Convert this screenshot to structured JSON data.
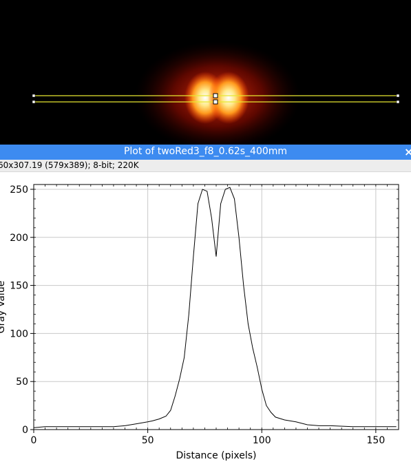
{
  "window": {
    "plot_title": "Plot of twoRed3_f8_0.62s_400mm",
    "close_glyph": "×",
    "info_text": "60x307.19   (579x389); 8-bit; 220K"
  },
  "colors": {
    "titlebar": "#3d8bf0",
    "line_selection": "#e8e830",
    "profile_line": "#000000",
    "grid": "#c8c8c8"
  },
  "chart_data": {
    "type": "line",
    "title": "",
    "xlabel": "Distance (pixels)",
    "ylabel": "Gray Value",
    "xlim": [
      0,
      160
    ],
    "ylim": [
      0,
      255
    ],
    "x_ticks": [
      0,
      50,
      100,
      150
    ],
    "y_ticks": [
      0,
      50,
      100,
      150,
      200,
      250
    ],
    "grid": true,
    "series": [
      {
        "name": "",
        "x": [
          0,
          5,
          10,
          15,
          20,
          25,
          30,
          35,
          40,
          45,
          50,
          52,
          55,
          58,
          60,
          62,
          64,
          66,
          68,
          70,
          72,
          74,
          76,
          78,
          80,
          82,
          84,
          86,
          88,
          90,
          92,
          94,
          96,
          98,
          100,
          102,
          104,
          106,
          110,
          115,
          120,
          125,
          130,
          140,
          150,
          159
        ],
        "y": [
          2,
          3,
          3,
          3,
          3,
          3,
          3,
          3,
          4,
          6,
          8,
          9,
          11,
          14,
          20,
          35,
          53,
          75,
          120,
          180,
          235,
          250,
          248,
          220,
          180,
          235,
          250,
          252,
          240,
          200,
          150,
          110,
          85,
          65,
          42,
          25,
          18,
          13,
          10,
          8,
          5,
          4,
          4,
          3,
          3,
          3
        ]
      }
    ]
  }
}
